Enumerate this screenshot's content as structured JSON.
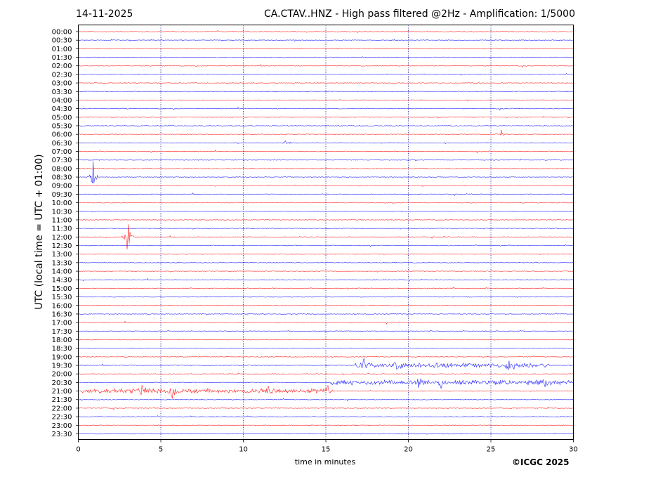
{
  "header": {
    "date": "14-11-2025",
    "title": "CA.CTAV..HNZ - High pass filtered @2Hz - Amplification: 1/5000"
  },
  "footer": {
    "copyright": "©ICGC 2025"
  },
  "chart_data": {
    "type": "line",
    "xlabel": "time in minutes",
    "ylabel": "UTC (local time = UTC + 01:00)",
    "xlim": [
      0,
      30
    ],
    "xticks": [
      0,
      5,
      10,
      15,
      20,
      25,
      30
    ],
    "vertical_gridlines": [
      5,
      10,
      15,
      20,
      25
    ],
    "row_labels": [
      "00:00",
      "00:30",
      "01:00",
      "01:30",
      "02:00",
      "02:30",
      "03:00",
      "03:30",
      "04:00",
      "04:30",
      "05:00",
      "05:30",
      "06:00",
      "06:30",
      "07:00",
      "07:30",
      "08:00",
      "08:30",
      "09:00",
      "09:30",
      "10:00",
      "10:30",
      "11:00",
      "11:30",
      "12:00",
      "12:30",
      "13:00",
      "13:30",
      "14:00",
      "14:30",
      "15:00",
      "15:30",
      "16:00",
      "16:30",
      "17:00",
      "17:30",
      "18:00",
      "18:30",
      "19:00",
      "19:30",
      "20:00",
      "20:30",
      "21:00",
      "21:30",
      "22:00",
      "22:30",
      "23:00",
      "23:30"
    ],
    "trace_colors": [
      "#ff0000",
      "#0000ff"
    ],
    "events": [
      {
        "row": "08:30",
        "minute": 0.9,
        "amplitude": 0.9
      },
      {
        "row": "12:00",
        "minute": 3.0,
        "amplitude": 1.1
      },
      {
        "row": "06:00",
        "minute": 25.6,
        "amplitude": 0.35
      },
      {
        "row": "06:30",
        "minute": 12.6,
        "amplitude": 0.15
      },
      {
        "row": "19:30",
        "minute": 17.3,
        "amplitude": 0.35
      },
      {
        "row": "19:30",
        "minute": 19.4,
        "amplitude": 0.45
      },
      {
        "row": "19:30",
        "minute": 26.2,
        "amplitude": 0.8
      },
      {
        "row": "20:30",
        "minute": 20.6,
        "amplitude": 0.35
      },
      {
        "row": "20:30",
        "minute": 22.0,
        "amplitude": 0.3
      },
      {
        "row": "20:30",
        "minute": 28.3,
        "amplitude": 0.3
      },
      {
        "row": "21:00",
        "minute": 3.9,
        "amplitude": 0.35
      },
      {
        "row": "21:00",
        "minute": 5.7,
        "amplitude": 0.3
      },
      {
        "row": "21:00",
        "minute": 11.4,
        "amplitude": 0.5
      },
      {
        "row": "21:00",
        "minute": 15.1,
        "amplitude": 0.55
      }
    ],
    "noisy_segments": [
      {
        "row": "19:30",
        "from": 16.8,
        "to": 28.5
      },
      {
        "row": "20:30",
        "from": 15.3,
        "to": 29.9
      },
      {
        "row": "21:00",
        "from": 0.2,
        "to": 15.2
      }
    ]
  }
}
